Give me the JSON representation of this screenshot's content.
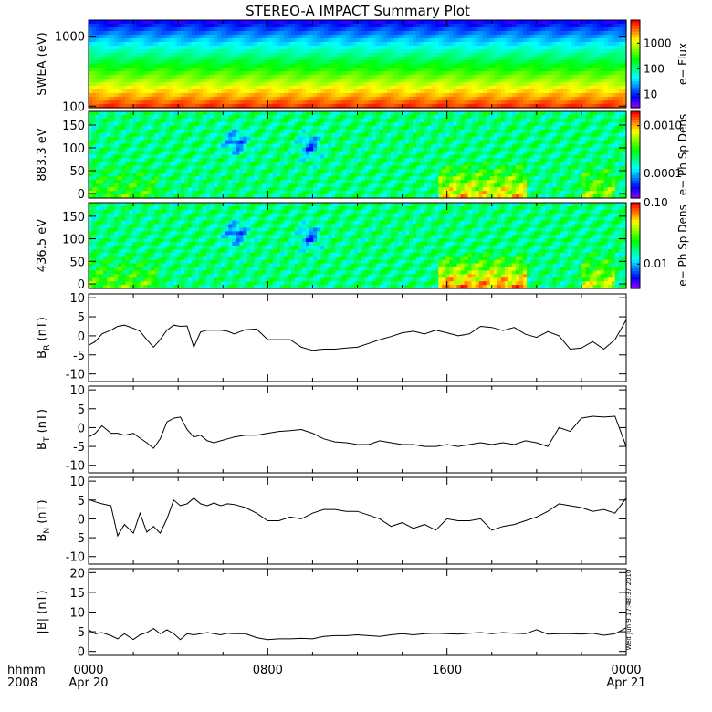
{
  "title": "STEREO-A IMPACT Summary Plot",
  "timestamp": "Wed Jun  9 17:48:37 2010",
  "time_axis": {
    "row_label": "hhmm",
    "year": "2008",
    "ticks": [
      {
        "hour": 0,
        "label": "0000",
        "date": "Apr 20"
      },
      {
        "hour": 8,
        "label": "0800",
        "date": ""
      },
      {
        "hour": 16,
        "label": "1600",
        "date": ""
      },
      {
        "hour": 24,
        "label": "0000",
        "date": "Apr 21"
      }
    ]
  },
  "chart_data": [
    {
      "type": "heatmap",
      "name": "swea",
      "ylabel": "SWEA (eV)",
      "ylog": true,
      "ylim": [
        95,
        1700
      ],
      "yticks": [
        {
          "v": 100,
          "label": "100"
        },
        {
          "v": 1000,
          "label": "1000"
        }
      ],
      "colorbar": {
        "label": "e− Flux",
        "log": true,
        "range": [
          3,
          8000
        ],
        "ticks": [
          {
            "v": 10,
            "label": "10"
          },
          {
            "v": 100,
            "label": "100"
          },
          {
            "v": 1000,
            "label": "1000"
          }
        ]
      }
    },
    {
      "type": "heatmap",
      "name": "pad883",
      "ylabel": "883.3 eV",
      "ylim": [
        -10,
        180
      ],
      "yticks": [
        {
          "v": 0,
          "label": "0"
        },
        {
          "v": 50,
          "label": "50"
        },
        {
          "v": 100,
          "label": "100"
        },
        {
          "v": 150,
          "label": "150"
        }
      ],
      "colorbar": {
        "label": "e− Ph Sp Dens",
        "log": true,
        "range": [
          3e-05,
          0.002
        ],
        "ticks": [
          {
            "v": 0.0001,
            "label": "0.0001"
          },
          {
            "v": 0.001,
            "label": "0.0010"
          }
        ]
      }
    },
    {
      "type": "heatmap",
      "name": "pad436",
      "ylabel": "436.5 eV",
      "ylim": [
        -10,
        180
      ],
      "yticks": [
        {
          "v": 0,
          "label": "0"
        },
        {
          "v": 50,
          "label": "50"
        },
        {
          "v": 100,
          "label": "100"
        },
        {
          "v": 150,
          "label": "150"
        }
      ],
      "colorbar": {
        "label": "e− Ph Sp Dens",
        "log": true,
        "range": [
          0.004,
          0.1
        ],
        "ticks": [
          {
            "v": 0.01,
            "label": "0.01"
          },
          {
            "v": 0.1,
            "label": "0.10"
          }
        ]
      }
    },
    {
      "type": "line",
      "name": "br",
      "ylabel": "B",
      "ylabel_sub": "R",
      "ylabel_unit": " (nT)",
      "ylim": [
        -12,
        11
      ],
      "yticks": [
        -10,
        -5,
        0,
        5,
        10
      ],
      "x": [
        0,
        0.3,
        0.6,
        1,
        1.3,
        1.6,
        2,
        2.3,
        2.6,
        2.9,
        3.2,
        3.5,
        3.8,
        4.1,
        4.4,
        4.7,
        5,
        5.3,
        5.6,
        5.9,
        6.2,
        6.5,
        7,
        7.5,
        8,
        8.5,
        9,
        9.5,
        10,
        10.5,
        11,
        11.5,
        12,
        12.5,
        13,
        13.5,
        14,
        14.5,
        15,
        15.5,
        16,
        16.5,
        17,
        17.5,
        18,
        18.5,
        19,
        19.5,
        20,
        20.5,
        21,
        21.5,
        22,
        22.5,
        23,
        23.5,
        24
      ],
      "values": [
        -2.5,
        -1.5,
        0.5,
        1.5,
        2.5,
        2.8,
        2,
        1.2,
        -1,
        -3,
        -1,
        1.5,
        2.8,
        2.5,
        2.6,
        -3,
        1,
        1.5,
        1.5,
        1.5,
        1.2,
        0.5,
        1.6,
        1.8,
        -1,
        -1,
        -1,
        -3,
        -3.8,
        -3.5,
        -3.5,
        -3.2,
        -3,
        -2,
        -1,
        -0.2,
        0.8,
        1.2,
        0.5,
        1.5,
        0.8,
        0,
        0.5,
        2.5,
        2.2,
        1.4,
        2.2,
        0.4,
        -0.4,
        1.1,
        0,
        -3.5,
        -3.2,
        -1.5,
        -3.5,
        -1,
        4.2
      ]
    },
    {
      "type": "line",
      "name": "bt",
      "ylabel": "B",
      "ylabel_sub": "T",
      "ylabel_unit": " (nT)",
      "ylim": [
        -12,
        11
      ],
      "yticks": [
        -10,
        -5,
        0,
        5,
        10
      ],
      "x": [
        0,
        0.3,
        0.6,
        1,
        1.3,
        1.6,
        2,
        2.3,
        2.6,
        2.9,
        3.2,
        3.5,
        3.8,
        4.1,
        4.4,
        4.7,
        5,
        5.3,
        5.6,
        5.9,
        6.2,
        6.5,
        7,
        7.5,
        8,
        8.5,
        9,
        9.5,
        10,
        10.5,
        11,
        11.5,
        12,
        12.5,
        13,
        13.5,
        14,
        14.5,
        15,
        15.5,
        16,
        16.5,
        17,
        17.5,
        18,
        18.5,
        19,
        19.5,
        20,
        20.5,
        21,
        21.5,
        22,
        22.5,
        23,
        23.5,
        24
      ],
      "values": [
        -2.5,
        -1.5,
        0.5,
        -1.5,
        -1.5,
        -2,
        -1.5,
        -2.8,
        -4,
        -5.5,
        -3,
        1.5,
        2.5,
        2.8,
        -0.5,
        -2.5,
        -2,
        -3.5,
        -4,
        -3.5,
        -3,
        -2.5,
        -2,
        -2,
        -1.5,
        -1,
        -0.8,
        -0.5,
        -1.5,
        -3,
        -3.8,
        -4,
        -4.5,
        -4.5,
        -3.5,
        -4,
        -4.5,
        -4.5,
        -5,
        -5,
        -4.5,
        -5,
        -4.5,
        -4,
        -4.5,
        -4,
        -4.5,
        -3.5,
        -4,
        -5,
        0,
        -1,
        2.5,
        3,
        2.8,
        3,
        -5
      ]
    },
    {
      "type": "line",
      "name": "bn",
      "ylabel": "B",
      "ylabel_sub": "N",
      "ylabel_unit": " (nT)",
      "ylim": [
        -12,
        11
      ],
      "yticks": [
        -10,
        -5,
        0,
        5,
        10
      ],
      "x": [
        0,
        0.3,
        0.6,
        1,
        1.3,
        1.6,
        2,
        2.3,
        2.6,
        2.9,
        3.2,
        3.5,
        3.8,
        4.1,
        4.4,
        4.7,
        5,
        5.3,
        5.6,
        5.9,
        6.2,
        6.5,
        7,
        7.5,
        8,
        8.5,
        9,
        9.5,
        10,
        10.5,
        11,
        11.5,
        12,
        12.5,
        13,
        13.5,
        14,
        14.5,
        15,
        15.5,
        16,
        16.5,
        17,
        17.5,
        18,
        18.5,
        19,
        19.5,
        20,
        20.5,
        21,
        21.5,
        22,
        22.5,
        23,
        23.5,
        24
      ],
      "values": [
        5.2,
        4.5,
        4,
        3.5,
        -4.5,
        -1.5,
        -3.8,
        1.5,
        -3.5,
        -2,
        -3.8,
        0,
        5,
        3.5,
        4,
        5.5,
        4,
        3.5,
        4.2,
        3.5,
        4,
        3.8,
        3,
        1.5,
        -0.5,
        -0.5,
        0.5,
        0,
        1.5,
        2.5,
        2.5,
        2,
        2,
        1,
        0,
        -2,
        -1,
        -2.5,
        -1.5,
        -3,
        0,
        -0.5,
        -0.5,
        0,
        -3,
        -2,
        -1.5,
        -0.5,
        0.5,
        2,
        4,
        3.5,
        3,
        2,
        2.5,
        1.5,
        5.5
      ]
    },
    {
      "type": "line",
      "name": "bmag",
      "ylabel": "|B| (nT)",
      "ylim": [
        -1,
        21
      ],
      "yticks": [
        0,
        5,
        10,
        15,
        20
      ],
      "x": [
        0,
        0.3,
        0.6,
        1,
        1.3,
        1.6,
        2,
        2.3,
        2.6,
        2.9,
        3.2,
        3.5,
        3.8,
        4.1,
        4.4,
        4.7,
        5,
        5.3,
        5.6,
        5.9,
        6.2,
        6.5,
        7,
        7.5,
        8,
        8.5,
        9,
        9.5,
        10,
        10.5,
        11,
        11.5,
        12,
        12.5,
        13,
        13.5,
        14,
        14.5,
        15,
        15.5,
        16,
        16.5,
        17,
        17.5,
        18,
        18.5,
        19,
        19.5,
        20,
        20.5,
        21,
        21.5,
        22,
        22.5,
        23,
        23.5,
        24
      ],
      "values": [
        5.5,
        4.5,
        4.8,
        4,
        3.2,
        4.5,
        3,
        4.2,
        4.8,
        5.8,
        4.5,
        5.5,
        4.5,
        3,
        4.5,
        4.2,
        4.5,
        4.8,
        4.5,
        4.2,
        4.6,
        4.5,
        4.5,
        3.5,
        3,
        3.2,
        3.2,
        3.3,
        3.2,
        3.8,
        4,
        4,
        4.2,
        4,
        3.8,
        4.2,
        4.5,
        4.2,
        4.5,
        4.6,
        4.5,
        4.4,
        4.6,
        4.8,
        4.5,
        4.8,
        4.6,
        4.5,
        5.5,
        4.4,
        4.5,
        4.5,
        4.4,
        4.6,
        4.1,
        4.5,
        6
      ]
    }
  ]
}
